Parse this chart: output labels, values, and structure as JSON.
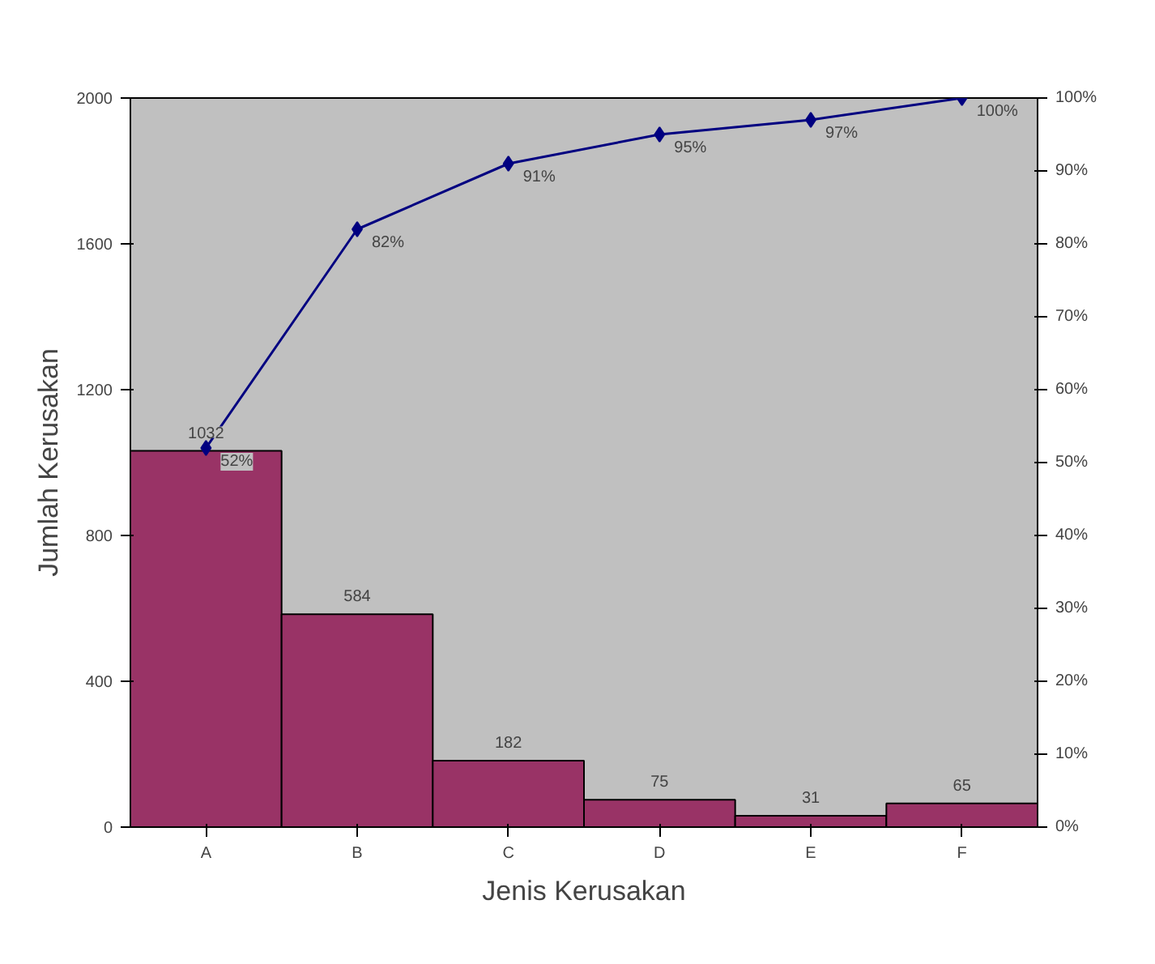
{
  "chart_data": {
    "type": "bar",
    "xlabel": "Jenis Kerusakan",
    "ylabel": "Jumlah Kerusakan",
    "categories": [
      "A",
      "B",
      "C",
      "D",
      "E",
      "F"
    ],
    "series": [
      {
        "color": "#993366",
        "values": [
          1032,
          584,
          182,
          75,
          31,
          65
        ],
        "value_labels": [
          "1032",
          "584",
          "182",
          "75",
          "31",
          "65"
        ]
      },
      {
        "type": "line",
        "axis": "y2",
        "color": "#000080",
        "marker": "diamond",
        "values": [
          52,
          82,
          91,
          95,
          97,
          100
        ],
        "value_labels": [
          "52%",
          "82%",
          "91%",
          "95%",
          "97%",
          "100%"
        ]
      }
    ],
    "ylim": [
      0,
      2000
    ],
    "yticks": [
      0,
      400,
      800,
      1200,
      1600,
      2000
    ],
    "y2lim": [
      0,
      100
    ],
    "y2ticks": [
      {
        "value": 0,
        "label": "0%"
      },
      {
        "value": 10,
        "label": "10%"
      },
      {
        "value": 20,
        "label": "20%"
      },
      {
        "value": 30,
        "label": "30%"
      },
      {
        "value": 40,
        "label": "40%"
      },
      {
        "value": 50,
        "label": "50%"
      },
      {
        "value": 60,
        "label": "60%"
      },
      {
        "value": 70,
        "label": "70%"
      },
      {
        "value": 80,
        "label": "80%"
      },
      {
        "value": 90,
        "label": "90%"
      },
      {
        "value": 100,
        "label": "100%"
      }
    ]
  }
}
